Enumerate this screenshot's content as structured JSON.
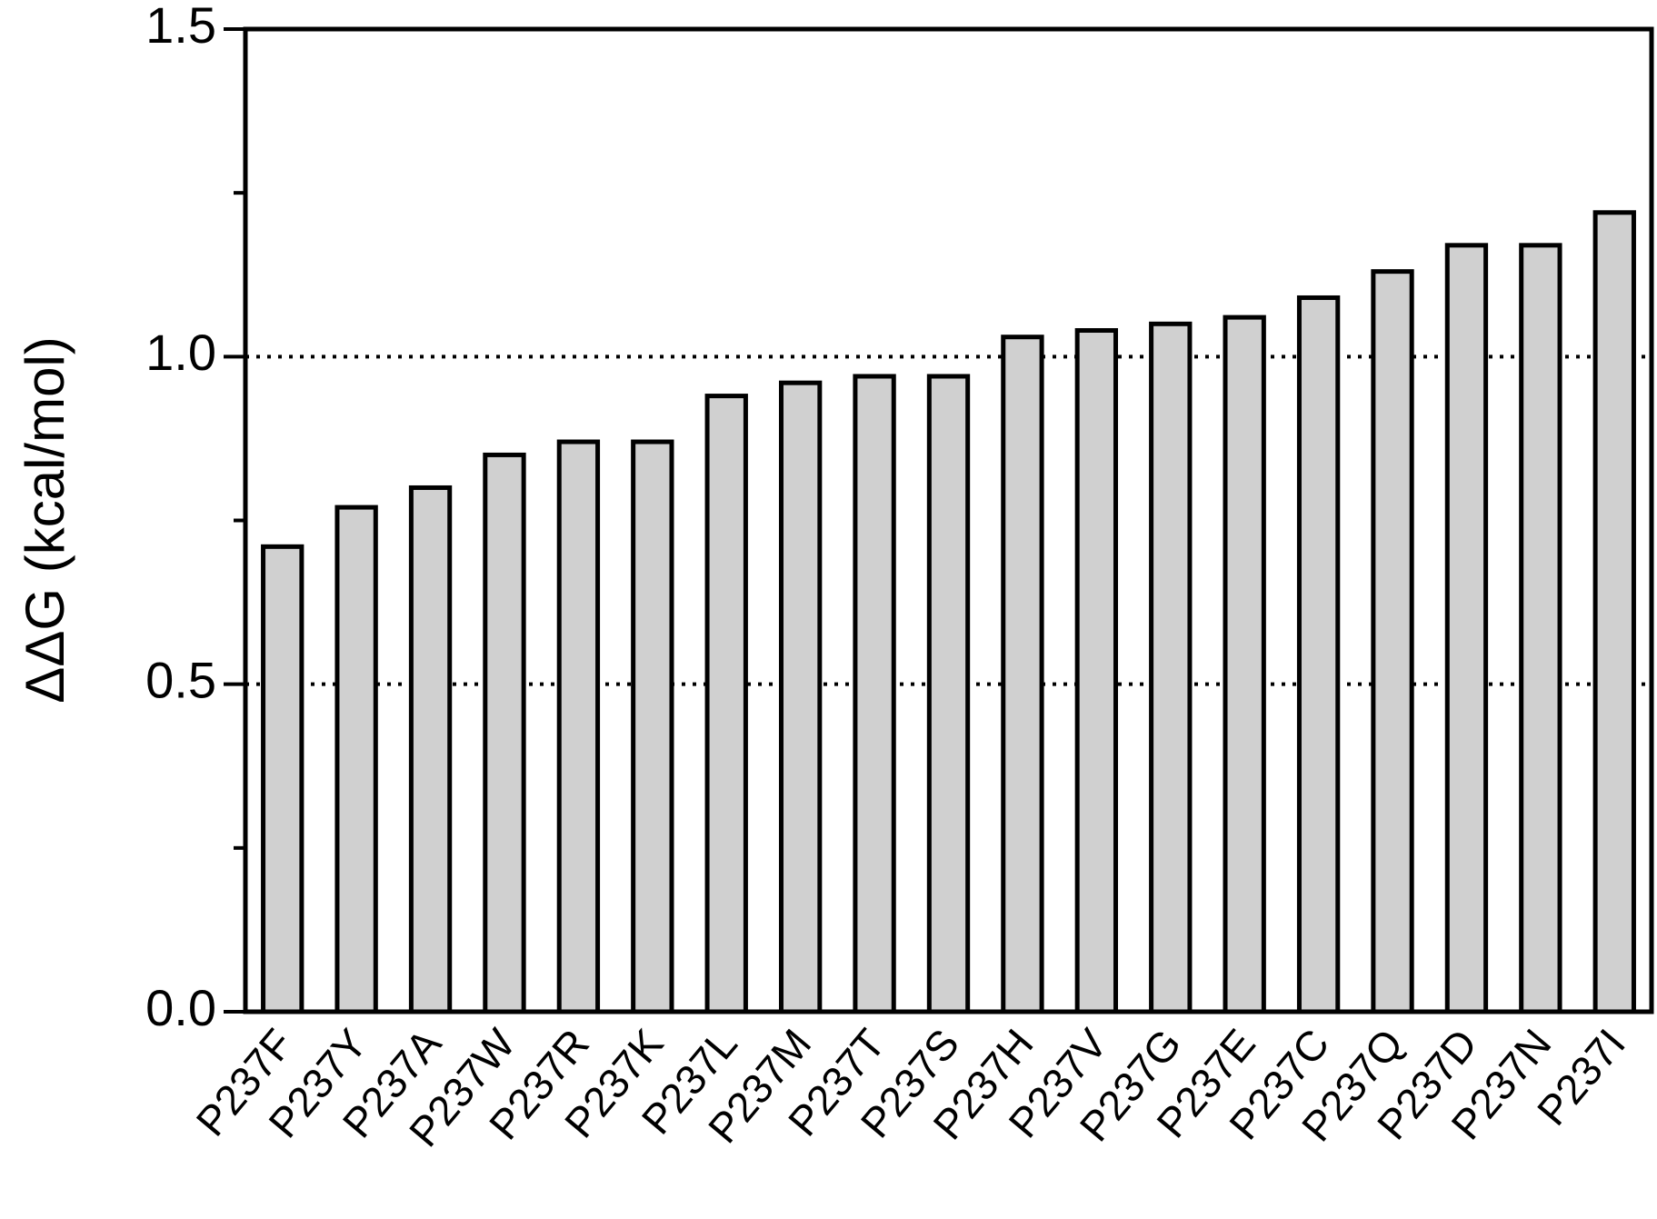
{
  "chart_data": {
    "type": "bar",
    "y_label": "ΔΔG (kcal/mol)",
    "categories": [
      "P237F",
      "P237Y",
      "P237A",
      "P237W",
      "P237R",
      "P237K",
      "P237L",
      "P237M",
      "P237T",
      "P237S",
      "P237H",
      "P237V",
      "P237G",
      "P237E",
      "P237C",
      "P237Q",
      "P237D",
      "P237N",
      "P237I"
    ],
    "values": [
      0.71,
      0.77,
      0.8,
      0.85,
      0.87,
      0.87,
      0.94,
      0.96,
      0.97,
      0.97,
      1.03,
      1.04,
      1.05,
      1.06,
      1.09,
      1.13,
      1.17,
      1.17,
      1.22
    ],
    "color": "#d0d0d0",
    "ylim": [
      0,
      1.5
    ],
    "yticks": [
      {
        "value": 0,
        "label": "0.0"
      },
      {
        "value": 0.5,
        "label": "0.5"
      },
      {
        "value": 1,
        "label": "1.0"
      },
      {
        "value": 1.5,
        "label": "1.5"
      }
    ],
    "minor_yticks": [
      0.25,
      0.75,
      1.25
    ],
    "reference_lines": [
      0.5,
      1.0
    ]
  }
}
